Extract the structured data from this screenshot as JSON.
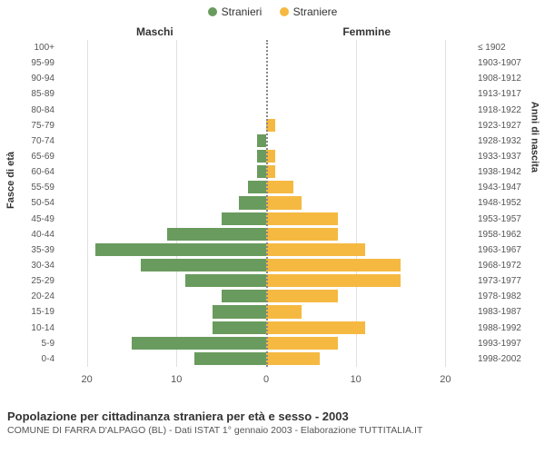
{
  "legend": {
    "male": {
      "label": "Stranieri",
      "color": "#6a9b5e"
    },
    "female": {
      "label": "Straniere",
      "color": "#f5b942"
    }
  },
  "headers": {
    "male": "Maschi",
    "female": "Femmine"
  },
  "axes": {
    "y_left_title": "Fasce di età",
    "y_right_title": "Anni di nascita",
    "x_ticks": [
      20,
      10,
      0,
      10,
      20
    ],
    "x_max": 23
  },
  "rows": [
    {
      "age": "100+",
      "birth": "≤ 1902",
      "m": 0,
      "f": 0
    },
    {
      "age": "95-99",
      "birth": "1903-1907",
      "m": 0,
      "f": 0
    },
    {
      "age": "90-94",
      "birth": "1908-1912",
      "m": 0,
      "f": 0
    },
    {
      "age": "85-89",
      "birth": "1913-1917",
      "m": 0,
      "f": 0
    },
    {
      "age": "80-84",
      "birth": "1918-1922",
      "m": 0,
      "f": 0
    },
    {
      "age": "75-79",
      "birth": "1923-1927",
      "m": 0,
      "f": 1
    },
    {
      "age": "70-74",
      "birth": "1928-1932",
      "m": 1,
      "f": 0
    },
    {
      "age": "65-69",
      "birth": "1933-1937",
      "m": 1,
      "f": 1
    },
    {
      "age": "60-64",
      "birth": "1938-1942",
      "m": 1,
      "f": 1
    },
    {
      "age": "55-59",
      "birth": "1943-1947",
      "m": 2,
      "f": 3
    },
    {
      "age": "50-54",
      "birth": "1948-1952",
      "m": 3,
      "f": 4
    },
    {
      "age": "45-49",
      "birth": "1953-1957",
      "m": 5,
      "f": 8
    },
    {
      "age": "40-44",
      "birth": "1958-1962",
      "m": 11,
      "f": 8
    },
    {
      "age": "35-39",
      "birth": "1963-1967",
      "m": 19,
      "f": 11
    },
    {
      "age": "30-34",
      "birth": "1968-1972",
      "m": 14,
      "f": 15
    },
    {
      "age": "25-29",
      "birth": "1973-1977",
      "m": 9,
      "f": 15
    },
    {
      "age": "20-24",
      "birth": "1978-1982",
      "m": 5,
      "f": 8
    },
    {
      "age": "15-19",
      "birth": "1983-1987",
      "m": 6,
      "f": 4
    },
    {
      "age": "10-14",
      "birth": "1988-1992",
      "m": 6,
      "f": 11
    },
    {
      "age": "5-9",
      "birth": "1993-1997",
      "m": 15,
      "f": 8
    },
    {
      "age": "0-4",
      "birth": "1998-2002",
      "m": 8,
      "f": 6
    }
  ],
  "colors": {
    "grid": "#e0e0e0",
    "center_line": "#888888",
    "background": "#ffffff",
    "text": "#333333"
  },
  "footer": {
    "title": "Popolazione per cittadinanza straniera per età e sesso - 2003",
    "subtitle": "COMUNE DI FARRA D'ALPAGO (BL) - Dati ISTAT 1° gennaio 2003 - Elaborazione TUTTITALIA.IT"
  }
}
